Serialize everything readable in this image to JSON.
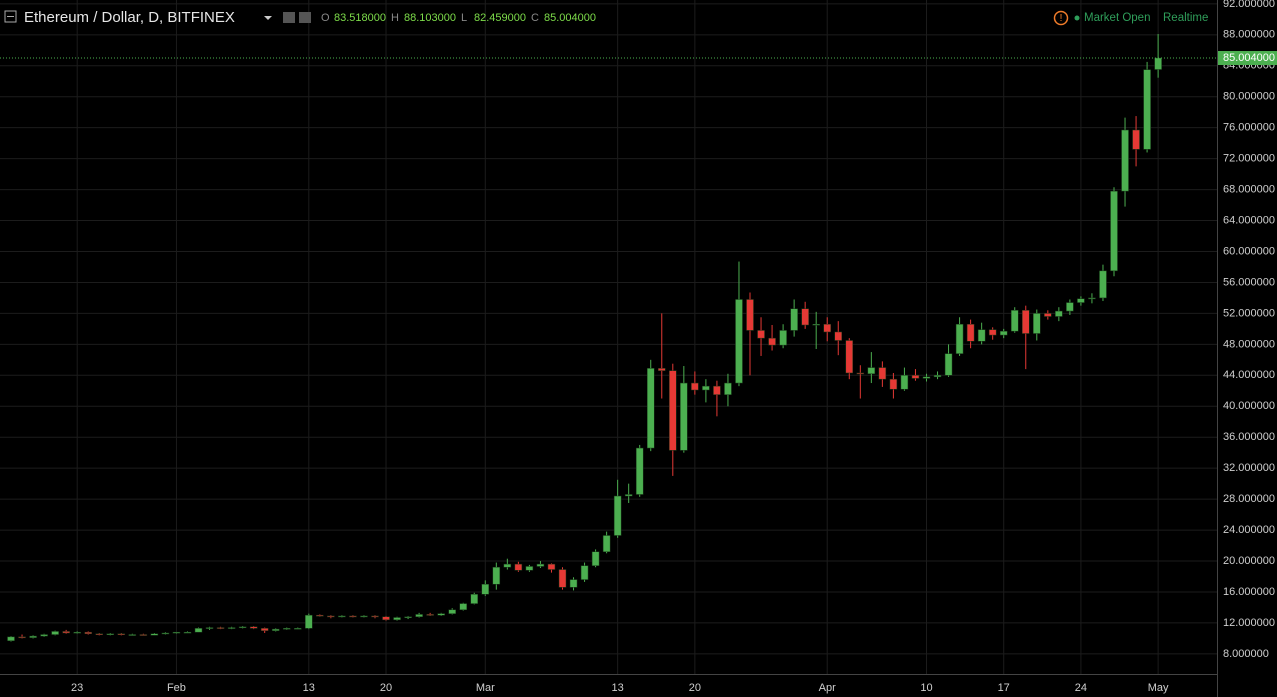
{
  "chart_data": {
    "type": "candlestick",
    "title": "Ethereum / Dollar, D, BITFINEX",
    "ohlc_legend": [
      {
        "key": "O",
        "text": "83.518000"
      },
      {
        "key": "H",
        "text": "88.103000"
      },
      {
        "key": "L",
        "text": "82.459000"
      },
      {
        "key": "C",
        "text": "85.004000"
      }
    ],
    "status": [
      "Market Open",
      "Realtime"
    ],
    "last_price": {
      "value": 85.004,
      "label": "85.004000"
    },
    "up_color": "#4caf50",
    "down_color": "#e53935",
    "grid": true,
    "ylim": [
      5.4,
      92.5
    ],
    "yticks": [
      {
        "value": 8,
        "label": "8.000000"
      },
      {
        "value": 12,
        "label": "12.000000"
      },
      {
        "value": 16,
        "label": "16.000000"
      },
      {
        "value": 20,
        "label": "20.000000"
      },
      {
        "value": 24,
        "label": "24.000000"
      },
      {
        "value": 28,
        "label": "28.000000"
      },
      {
        "value": 32,
        "label": "32.000000"
      },
      {
        "value": 36,
        "label": "36.000000"
      },
      {
        "value": 40,
        "label": "40.000000"
      },
      {
        "value": 44,
        "label": "44.000000"
      },
      {
        "value": 48,
        "label": "48.000000"
      },
      {
        "value": 52,
        "label": "52.000000"
      },
      {
        "value": 56,
        "label": "56.000000"
      },
      {
        "value": 60,
        "label": "60.000000"
      },
      {
        "value": 64,
        "label": "64.000000"
      },
      {
        "value": 68,
        "label": "68.000000"
      },
      {
        "value": 72,
        "label": "72.000000"
      },
      {
        "value": 76,
        "label": "76.000000"
      },
      {
        "value": 80,
        "label": "80.000000"
      },
      {
        "value": 84,
        "label": "84.000000"
      },
      {
        "value": 88,
        "label": "88.000000"
      },
      {
        "value": 92,
        "label": "92.000000"
      }
    ],
    "categories": [
      null,
      null,
      null,
      null,
      null,
      null,
      "23",
      null,
      null,
      null,
      null,
      null,
      null,
      null,
      null,
      "Feb",
      null,
      null,
      null,
      null,
      null,
      null,
      null,
      null,
      null,
      null,
      null,
      "13",
      null,
      null,
      null,
      null,
      null,
      null,
      "20",
      null,
      null,
      null,
      null,
      null,
      null,
      null,
      null,
      "Mar",
      null,
      null,
      null,
      null,
      null,
      null,
      null,
      null,
      null,
      null,
      null,
      "13",
      null,
      null,
      null,
      null,
      null,
      null,
      "20",
      null,
      null,
      null,
      null,
      null,
      null,
      null,
      null,
      null,
      null,
      null,
      "Apr",
      null,
      null,
      null,
      null,
      null,
      null,
      null,
      null,
      "10",
      null,
      null,
      null,
      null,
      null,
      null,
      "17",
      null,
      null,
      null,
      null,
      null,
      null,
      "24",
      null,
      null,
      null,
      null,
      null,
      null,
      "May"
    ],
    "open": [
      9.7,
      10.2,
      10.1,
      10.3,
      10.5,
      10.9,
      10.7,
      10.8,
      10.6,
      10.5,
      10.6,
      10.5,
      10.5,
      10.4,
      10.6,
      10.7,
      10.8,
      10.8,
      11.3,
      11.4,
      11.3,
      11.4,
      11.5,
      11.3,
      11.0,
      11.2,
      11.3,
      11.3,
      13.0,
      12.9,
      12.8,
      12.9,
      12.8,
      12.9,
      12.8,
      12.4,
      12.7,
      12.8,
      13.1,
      13.0,
      13.2,
      13.7,
      14.5,
      15.7,
      17.0,
      19.2,
      19.6,
      18.8,
      19.3,
      19.6,
      18.9,
      16.6,
      17.6,
      19.4,
      21.2,
      23.3,
      28.4,
      28.6,
      34.6,
      44.9,
      44.6,
      34.3,
      43.0,
      42.1,
      42.6,
      41.5,
      43.0,
      53.8,
      49.8,
      48.8,
      47.9,
      49.8,
      52.6,
      50.5,
      50.6,
      49.6,
      48.5,
      44.3,
      44.2,
      45.0,
      43.5,
      42.2,
      44.0,
      43.6,
      43.8,
      44.0,
      46.8,
      50.6,
      48.4,
      49.9,
      49.2,
      49.7,
      52.4,
      49.4,
      52.0,
      51.6,
      52.3,
      53.4,
      53.9,
      54.0,
      57.5,
      67.8,
      75.7,
      73.2,
      83.518
    ],
    "high": [
      10.3,
      10.5,
      10.4,
      10.6,
      11.0,
      11.1,
      10.9,
      10.9,
      10.7,
      10.7,
      10.7,
      10.6,
      10.6,
      10.7,
      10.8,
      10.8,
      10.9,
      11.4,
      11.5,
      11.5,
      11.5,
      11.6,
      11.6,
      11.4,
      11.3,
      11.4,
      11.4,
      13.2,
      13.1,
      13.0,
      13.0,
      13.0,
      13.0,
      13.0,
      12.9,
      12.8,
      12.9,
      13.3,
      13.3,
      13.3,
      13.9,
      14.6,
      15.9,
      17.5,
      19.8,
      20.3,
      19.9,
      19.5,
      20.0,
      19.7,
      19.2,
      17.9,
      19.8,
      21.5,
      23.8,
      30.5,
      30.0,
      35.0,
      46.0,
      52.0,
      45.5,
      45.2,
      44.5,
      43.5,
      43.3,
      44.2,
      58.7,
      54.7,
      51.5,
      50.5,
      50.6,
      53.8,
      53.5,
      52.2,
      51.5,
      51.0,
      48.8,
      45.3,
      47.0,
      45.8,
      44.3,
      45.0,
      44.8,
      44.2,
      44.5,
      48.0,
      51.5,
      51.2,
      50.8,
      50.2,
      50.0,
      52.8,
      53.0,
      52.5,
      52.4,
      52.8,
      53.8,
      54.2,
      54.6,
      58.3,
      68.3,
      77.3,
      77.5,
      84.5,
      88.103
    ],
    "low": [
      9.6,
      10.0,
      10.0,
      10.2,
      10.4,
      10.6,
      10.6,
      10.5,
      10.4,
      10.4,
      10.4,
      10.4,
      10.4,
      10.4,
      10.5,
      10.6,
      10.7,
      10.8,
      11.1,
      11.2,
      11.2,
      11.3,
      11.2,
      10.7,
      10.9,
      11.1,
      11.2,
      11.2,
      12.8,
      12.6,
      12.7,
      12.7,
      12.7,
      12.6,
      12.3,
      12.3,
      12.5,
      12.7,
      12.9,
      12.9,
      13.1,
      13.6,
      14.4,
      15.5,
      16.3,
      18.9,
      18.6,
      18.6,
      19.1,
      18.5,
      16.3,
      16.2,
      17.3,
      19.2,
      21.0,
      23.0,
      27.5,
      28.3,
      34.2,
      41.0,
      31.0,
      34.0,
      41.5,
      40.5,
      38.7,
      40.0,
      42.6,
      44.0,
      46.5,
      47.2,
      47.5,
      49.0,
      50.0,
      47.4,
      48.4,
      46.6,
      43.5,
      41.0,
      43.0,
      42.5,
      41.0,
      42.0,
      43.3,
      43.2,
      43.5,
      43.8,
      46.5,
      47.5,
      48.0,
      48.6,
      48.8,
      49.5,
      44.8,
      48.5,
      51.2,
      51.0,
      51.8,
      53.0,
      53.3,
      53.6,
      56.8,
      65.8,
      71.0,
      72.8,
      82.459
    ],
    "close": [
      10.2,
      10.1,
      10.3,
      10.5,
      10.9,
      10.7,
      10.8,
      10.6,
      10.5,
      10.6,
      10.5,
      10.5,
      10.4,
      10.6,
      10.7,
      10.8,
      10.8,
      11.3,
      11.4,
      11.3,
      11.4,
      11.5,
      11.3,
      11.0,
      11.2,
      11.3,
      11.3,
      13.0,
      12.9,
      12.8,
      12.9,
      12.8,
      12.9,
      12.8,
      12.4,
      12.7,
      12.8,
      13.1,
      13.0,
      13.2,
      13.7,
      14.5,
      15.7,
      17.0,
      19.2,
      19.6,
      18.8,
      19.3,
      19.6,
      18.9,
      16.6,
      17.6,
      19.4,
      21.2,
      23.3,
      28.4,
      28.6,
      34.6,
      44.9,
      44.6,
      34.3,
      43.0,
      42.1,
      42.6,
      41.5,
      43.0,
      53.8,
      49.8,
      48.8,
      47.9,
      49.8,
      52.6,
      50.5,
      50.6,
      49.6,
      48.5,
      44.3,
      44.2,
      45.0,
      43.5,
      42.2,
      44.0,
      43.6,
      43.8,
      44.0,
      46.8,
      50.6,
      48.4,
      49.9,
      49.2,
      49.7,
      52.4,
      49.4,
      52.0,
      51.6,
      52.3,
      53.4,
      53.9,
      54.0,
      57.5,
      67.8,
      75.7,
      73.2,
      83.5,
      85.004
    ]
  }
}
